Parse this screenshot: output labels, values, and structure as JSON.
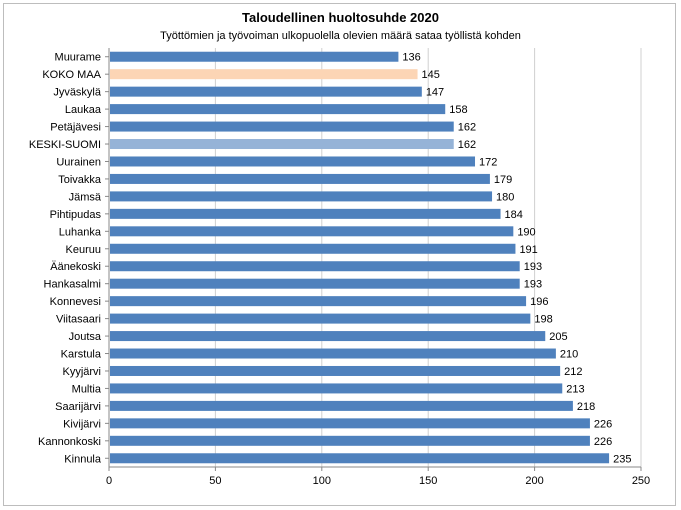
{
  "chart_data": {
    "type": "bar",
    "orientation": "horizontal",
    "title": "Taloudellinen huoltosuhde 2020",
    "subtitle": "Työttömien ja työvoiman ulkopuolella olevien määrä sataa työllistä kohden",
    "xlabel": "",
    "ylabel": "",
    "xlim": [
      0,
      250
    ],
    "xticks": [
      0,
      50,
      100,
      150,
      200,
      250
    ],
    "grid": "vertical",
    "legend": "none",
    "colors": {
      "default": "#4f81bd",
      "KOKO MAA": "#fcd5b5",
      "KESKI-SUOMI": "#95b3d7"
    },
    "categories": [
      "Muurame",
      "KOKO MAA",
      "Jyväskylä",
      "Laukaa",
      "Petäjävesi",
      "KESKI-SUOMI",
      "Uurainen",
      "Toivakka",
      "Jämsä",
      "Pihtipudas",
      "Luhanka",
      "Keuruu",
      "Äänekoski",
      "Hankasalmi",
      "Konnevesi",
      "Viitasaari",
      "Joutsa",
      "Karstula",
      "Kyyjärvi",
      "Multia",
      "Saarijärvi",
      "Kivijärvi",
      "Kannonkoski",
      "Kinnula"
    ],
    "values": [
      136,
      145,
      147,
      158,
      162,
      162,
      172,
      179,
      180,
      184,
      190,
      191,
      193,
      193,
      196,
      198,
      205,
      210,
      212,
      213,
      218,
      226,
      226,
      235
    ],
    "value_labels": [
      "136",
      "145",
      "147",
      "158",
      "162",
      "162",
      "172",
      "179",
      "180",
      "184",
      "190",
      "191",
      "193",
      "193",
      "196",
      "198",
      "205",
      "210",
      "212",
      "213",
      "218",
      "226",
      "226",
      "235"
    ]
  }
}
